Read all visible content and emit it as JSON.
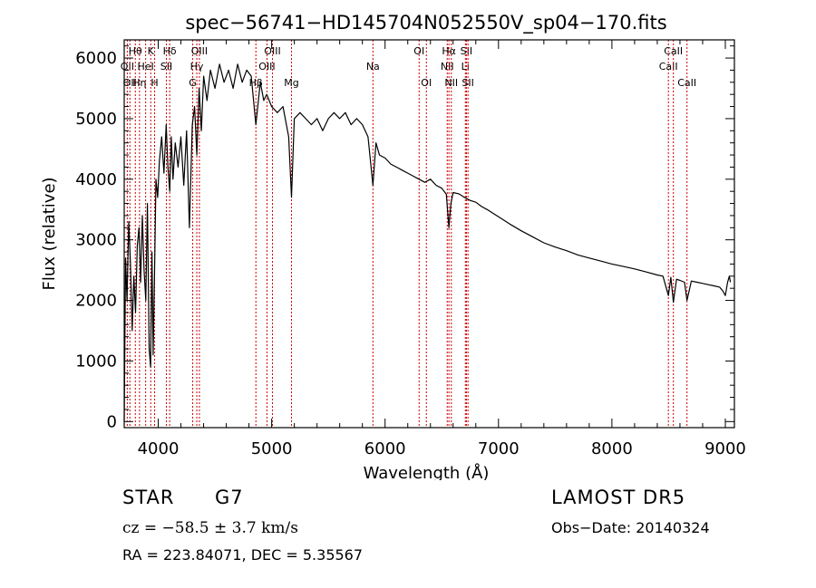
{
  "chart_data": {
    "type": "line",
    "title": "spec−56741−HD145704N052550V_sp04−170.fits",
    "xlabel": "Wavelength (Å)",
    "ylabel": "Flux (relative)",
    "xlim": [
      3700,
      9080
    ],
    "ylim": [
      -100,
      6300
    ],
    "xticks": [
      4000,
      5000,
      6000,
      7000,
      8000,
      9000
    ],
    "yticks": [
      0,
      1000,
      2000,
      3000,
      4000,
      5000,
      6000
    ],
    "grid": false,
    "series": [
      {
        "x": [
          3700,
          3712,
          3725,
          3740,
          3755,
          3770,
          3785,
          3800,
          3815,
          3830,
          3845,
          3860,
          3875,
          3890,
          3905,
          3920,
          3933,
          3945,
          3955,
          3968,
          3980,
          3995,
          4010,
          4030,
          4050,
          4070,
          4085,
          4101,
          4115,
          4130,
          4150,
          4175,
          4200,
          4225,
          4250,
          4275,
          4300,
          4320,
          4340,
          4360,
          4380,
          4400,
          4430,
          4460,
          4500,
          4540,
          4580,
          4620,
          4660,
          4700,
          4740,
          4780,
          4820,
          4861,
          4900,
          4930,
          4957,
          5000,
          5050,
          5100,
          5150,
          5175,
          5200,
          5250,
          5300,
          5350,
          5400,
          5450,
          5500,
          5550,
          5600,
          5650,
          5700,
          5750,
          5800,
          5850,
          5893,
          5920,
          5950,
          6000,
          6050,
          6100,
          6150,
          6200,
          6250,
          6300,
          6350,
          6400,
          6450,
          6500,
          6540,
          6563,
          6580,
          6600,
          6650,
          6700,
          6750,
          6800,
          6850,
          6900,
          7000,
          7100,
          7200,
          7300,
          7400,
          7500,
          7600,
          7700,
          7800,
          7900,
          8000,
          8100,
          8200,
          8300,
          8400,
          8450,
          8498,
          8520,
          8542,
          8570,
          8600,
          8640,
          8662,
          8700,
          8750,
          8800,
          8850,
          8900,
          8950,
          8980,
          9000,
          9020,
          9035,
          9045
        ],
        "y": [
          0,
          2700,
          2000,
          3300,
          2600,
          1500,
          2400,
          1800,
          2900,
          3200,
          2300,
          3400,
          2500,
          2000,
          3600,
          1200,
          900,
          2800,
          1100,
          2500,
          4000,
          3700,
          4300,
          4700,
          4100,
          4900,
          4200,
          3800,
          4700,
          4000,
          4600,
          4200,
          4700,
          3900,
          4800,
          3200,
          4900,
          5200,
          4400,
          5500,
          4800,
          5700,
          5300,
          5800,
          5500,
          5900,
          5600,
          5800,
          5500,
          5900,
          5600,
          5800,
          5700,
          4900,
          5600,
          5300,
          5400,
          5200,
          5100,
          5200,
          4700,
          3700,
          5000,
          5100,
          5000,
          4900,
          5000,
          4800,
          5000,
          5100,
          5000,
          5100,
          4900,
          5000,
          4900,
          4700,
          3900,
          4600,
          4400,
          4350,
          4250,
          4200,
          4150,
          4100,
          4050,
          4000,
          3950,
          4000,
          3900,
          3850,
          3750,
          3200,
          3600,
          3780,
          3760,
          3700,
          3650,
          3620,
          3550,
          3500,
          3380,
          3260,
          3150,
          3050,
          2950,
          2880,
          2820,
          2750,
          2700,
          2650,
          2600,
          2560,
          2520,
          2470,
          2420,
          2400,
          2080,
          2380,
          1970,
          2350,
          2330,
          2300,
          2000,
          2320,
          2300,
          2280,
          2260,
          2240,
          2220,
          2150,
          2080,
          2300,
          2400,
          2300
        ]
      }
    ],
    "line_markers": [
      {
        "wl": 3727,
        "label": "OII",
        "row": 2
      },
      {
        "wl": 3750,
        "label": "OII",
        "row": 3
      },
      {
        "wl": 3798,
        "label": "Hθ",
        "row": 1
      },
      {
        "wl": 3835,
        "label": "Hη",
        "row": 3
      },
      {
        "wl": 3889,
        "label": "HeI",
        "row": 2
      },
      {
        "wl": 3934,
        "label": "K",
        "row": 1
      },
      {
        "wl": 3968,
        "label": "H",
        "row": 3
      },
      {
        "wl": 4072,
        "label": "SII",
        "row": 2
      },
      {
        "wl": 4101,
        "label": "Hδ",
        "row": 1
      },
      {
        "wl": 4304,
        "label": "G",
        "row": 3
      },
      {
        "wl": 4340,
        "label": "Hγ",
        "row": 2
      },
      {
        "wl": 4363,
        "label": "OIII",
        "row": 1
      },
      {
        "wl": 4861,
        "label": "Hβ",
        "row": 3
      },
      {
        "wl": 4959,
        "label": "OIII",
        "row": 2
      },
      {
        "wl": 5007,
        "label": "OIII",
        "row": 1
      },
      {
        "wl": 5175,
        "label": "Mg",
        "row": 3
      },
      {
        "wl": 5893,
        "label": "Na",
        "row": 2
      },
      {
        "wl": 6300,
        "label": "OI",
        "row": 1
      },
      {
        "wl": 6364,
        "label": "OI",
        "row": 3
      },
      {
        "wl": 6548,
        "label": "NII",
        "row": 2
      },
      {
        "wl": 6563,
        "label": "Hα",
        "row": 1
      },
      {
        "wl": 6584,
        "label": "NII",
        "row": 3
      },
      {
        "wl": 6708,
        "label": "Li",
        "row": 2
      },
      {
        "wl": 6717,
        "label": "SII",
        "row": 1
      },
      {
        "wl": 6731,
        "label": "SII",
        "row": 3
      },
      {
        "wl": 8498,
        "label": "CaII",
        "row": 2
      },
      {
        "wl": 8542,
        "label": "CaII",
        "row": 1
      },
      {
        "wl": 8662,
        "label": "CaII",
        "row": 3
      }
    ]
  },
  "info": {
    "object_type": "STAR",
    "subclass": "G7",
    "survey": "LAMOST DR5",
    "cz": "cz = −58.5 ± 3.7 km/s",
    "obs_date": "Obs−Date: 20140324",
    "radec": "RA = 223.84071, DEC =   5.35567"
  },
  "colors": {
    "spectrum": "#000000",
    "marker_lines": "#cc0000",
    "axes": "#000000",
    "background": "#ffffff"
  }
}
